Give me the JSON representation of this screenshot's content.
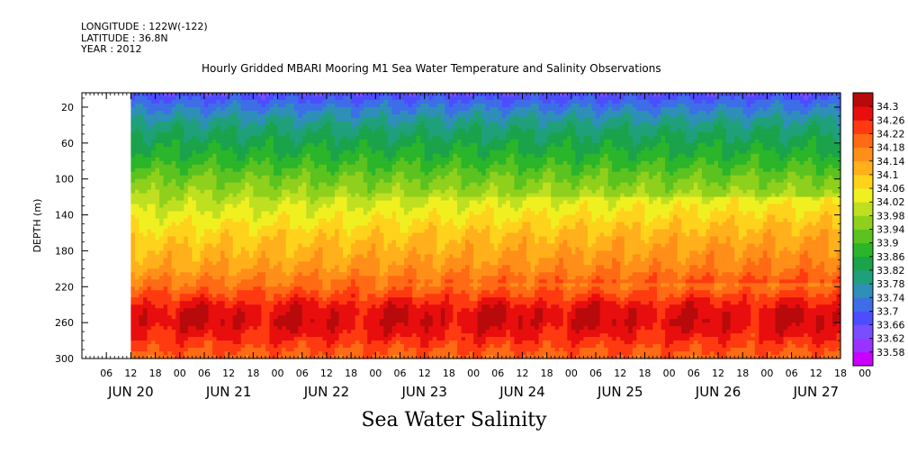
{
  "header": {
    "longitude": "LONGITUDE : 122W(-122)",
    "latitude": "LATITUDE : 36.8N",
    "year": "YEAR : 2012",
    "title": "Hourly Gridded MBARI Mooring M1 Sea Water Temperature and Salinity Observations"
  },
  "footer": {
    "variable_title": "Sea Water Salinity"
  },
  "chart_data": {
    "type": "heatmap",
    "title": "Hourly Gridded MBARI Mooring M1 Sea Water Temperature and Salinity Observations",
    "variable": "Sea Water Salinity",
    "ylabel": "DEPTH (m)",
    "xlabel": "",
    "x_range_hours": [
      0,
      186
    ],
    "x_start": "JUN 20 00",
    "data_start_hour": 12,
    "y_range": [
      300,
      4
    ],
    "y_ticks": [
      20,
      60,
      100,
      140,
      180,
      220,
      260,
      300
    ],
    "x_hour_ticks": [
      "06",
      "12",
      "18",
      "00",
      "06",
      "12",
      "18",
      "00",
      "06",
      "12",
      "18",
      "00",
      "06",
      "12",
      "18",
      "00",
      "06",
      "12",
      "18",
      "00",
      "06",
      "12",
      "18",
      "00",
      "06",
      "12",
      "18",
      "00",
      "06",
      "12",
      "18",
      "00"
    ],
    "x_day_labels": [
      "JUN 20",
      "JUN 21",
      "JUN 22",
      "JUN 23",
      "JUN 24",
      "JUN 25",
      "JUN 26",
      "JUN 27"
    ],
    "colorbar": {
      "labels": [
        "34.3",
        "34.26",
        "34.22",
        "34.18",
        "34.14",
        "34.1",
        "34.06",
        "34.02",
        "33.98",
        "33.94",
        "33.9",
        "33.86",
        "33.82",
        "33.78",
        "33.74",
        "33.7",
        "33.66",
        "33.62",
        "33.58"
      ],
      "min": 33.58,
      "max": 34.32
    },
    "depth_profile_typical": {
      "depth": [
        5,
        20,
        40,
        60,
        80,
        100,
        120,
        140,
        160,
        180,
        200,
        215,
        230,
        245,
        260,
        275,
        290,
        300
      ],
      "salinity": [
        33.7,
        33.76,
        33.82,
        33.86,
        33.9,
        33.95,
        33.99,
        34.03,
        34.07,
        34.1,
        34.13,
        34.17,
        34.22,
        34.27,
        34.28,
        34.25,
        34.21,
        34.19
      ]
    }
  }
}
